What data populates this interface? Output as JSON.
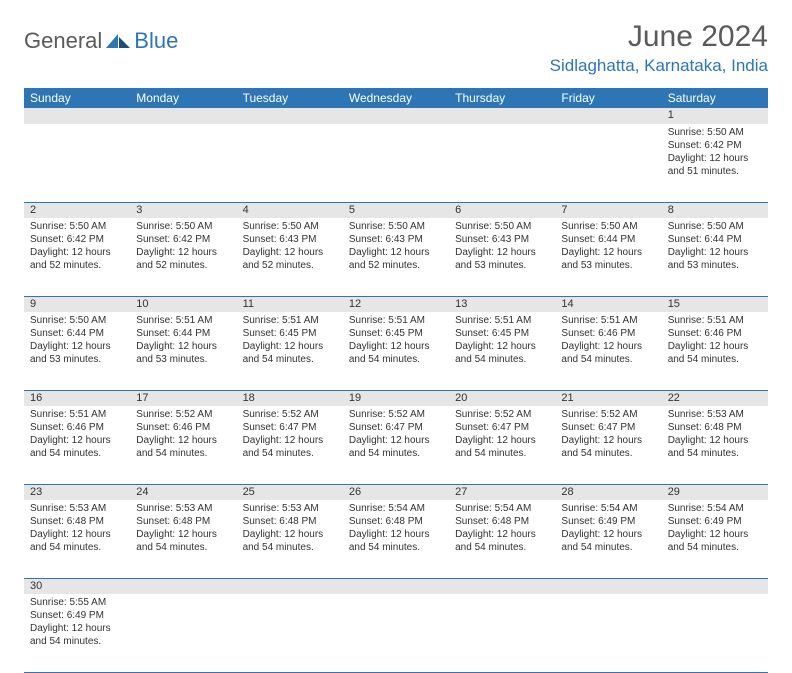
{
  "logo": {
    "text1": "General",
    "text2": "Blue"
  },
  "title": "June 2024",
  "location": "Sidlaghatta, Karnataka, India",
  "colors": {
    "header_bg": "#2e75b6",
    "header_text": "#ffffff",
    "daynum_bg": "#e6e6e6",
    "border": "#2e75b6",
    "title_color": "#5a5a5a",
    "location_color": "#2e75b6"
  },
  "weekdays": [
    "Sunday",
    "Monday",
    "Tuesday",
    "Wednesday",
    "Thursday",
    "Friday",
    "Saturday"
  ],
  "weeks": [
    [
      null,
      null,
      null,
      null,
      null,
      null,
      {
        "n": "1",
        "sr": "5:50 AM",
        "ss": "6:42 PM",
        "dl": "12 hours and 51 minutes."
      }
    ],
    [
      {
        "n": "2",
        "sr": "5:50 AM",
        "ss": "6:42 PM",
        "dl": "12 hours and 52 minutes."
      },
      {
        "n": "3",
        "sr": "5:50 AM",
        "ss": "6:42 PM",
        "dl": "12 hours and 52 minutes."
      },
      {
        "n": "4",
        "sr": "5:50 AM",
        "ss": "6:43 PM",
        "dl": "12 hours and 52 minutes."
      },
      {
        "n": "5",
        "sr": "5:50 AM",
        "ss": "6:43 PM",
        "dl": "12 hours and 52 minutes."
      },
      {
        "n": "6",
        "sr": "5:50 AM",
        "ss": "6:43 PM",
        "dl": "12 hours and 53 minutes."
      },
      {
        "n": "7",
        "sr": "5:50 AM",
        "ss": "6:44 PM",
        "dl": "12 hours and 53 minutes."
      },
      {
        "n": "8",
        "sr": "5:50 AM",
        "ss": "6:44 PM",
        "dl": "12 hours and 53 minutes."
      }
    ],
    [
      {
        "n": "9",
        "sr": "5:50 AM",
        "ss": "6:44 PM",
        "dl": "12 hours and 53 minutes."
      },
      {
        "n": "10",
        "sr": "5:51 AM",
        "ss": "6:44 PM",
        "dl": "12 hours and 53 minutes."
      },
      {
        "n": "11",
        "sr": "5:51 AM",
        "ss": "6:45 PM",
        "dl": "12 hours and 54 minutes."
      },
      {
        "n": "12",
        "sr": "5:51 AM",
        "ss": "6:45 PM",
        "dl": "12 hours and 54 minutes."
      },
      {
        "n": "13",
        "sr": "5:51 AM",
        "ss": "6:45 PM",
        "dl": "12 hours and 54 minutes."
      },
      {
        "n": "14",
        "sr": "5:51 AM",
        "ss": "6:46 PM",
        "dl": "12 hours and 54 minutes."
      },
      {
        "n": "15",
        "sr": "5:51 AM",
        "ss": "6:46 PM",
        "dl": "12 hours and 54 minutes."
      }
    ],
    [
      {
        "n": "16",
        "sr": "5:51 AM",
        "ss": "6:46 PM",
        "dl": "12 hours and 54 minutes."
      },
      {
        "n": "17",
        "sr": "5:52 AM",
        "ss": "6:46 PM",
        "dl": "12 hours and 54 minutes."
      },
      {
        "n": "18",
        "sr": "5:52 AM",
        "ss": "6:47 PM",
        "dl": "12 hours and 54 minutes."
      },
      {
        "n": "19",
        "sr": "5:52 AM",
        "ss": "6:47 PM",
        "dl": "12 hours and 54 minutes."
      },
      {
        "n": "20",
        "sr": "5:52 AM",
        "ss": "6:47 PM",
        "dl": "12 hours and 54 minutes."
      },
      {
        "n": "21",
        "sr": "5:52 AM",
        "ss": "6:47 PM",
        "dl": "12 hours and 54 minutes."
      },
      {
        "n": "22",
        "sr": "5:53 AM",
        "ss": "6:48 PM",
        "dl": "12 hours and 54 minutes."
      }
    ],
    [
      {
        "n": "23",
        "sr": "5:53 AM",
        "ss": "6:48 PM",
        "dl": "12 hours and 54 minutes."
      },
      {
        "n": "24",
        "sr": "5:53 AM",
        "ss": "6:48 PM",
        "dl": "12 hours and 54 minutes."
      },
      {
        "n": "25",
        "sr": "5:53 AM",
        "ss": "6:48 PM",
        "dl": "12 hours and 54 minutes."
      },
      {
        "n": "26",
        "sr": "5:54 AM",
        "ss": "6:48 PM",
        "dl": "12 hours and 54 minutes."
      },
      {
        "n": "27",
        "sr": "5:54 AM",
        "ss": "6:48 PM",
        "dl": "12 hours and 54 minutes."
      },
      {
        "n": "28",
        "sr": "5:54 AM",
        "ss": "6:49 PM",
        "dl": "12 hours and 54 minutes."
      },
      {
        "n": "29",
        "sr": "5:54 AM",
        "ss": "6:49 PM",
        "dl": "12 hours and 54 minutes."
      }
    ],
    [
      {
        "n": "30",
        "sr": "5:55 AM",
        "ss": "6:49 PM",
        "dl": "12 hours and 54 minutes."
      },
      null,
      null,
      null,
      null,
      null,
      null
    ]
  ],
  "labels": {
    "sunrise": "Sunrise:",
    "sunset": "Sunset:",
    "daylight": "Daylight:"
  }
}
